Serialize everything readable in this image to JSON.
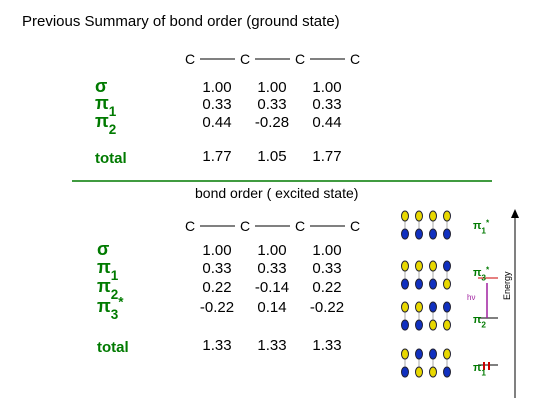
{
  "header": {
    "title": "Previous Summary of bond order (ground state)"
  },
  "ground_state": {
    "chain": [
      "C",
      "C",
      "C",
      "C"
    ],
    "rows": [
      {
        "symbol": "σ",
        "values": [
          "1.00",
          "1.00",
          "1.00"
        ]
      },
      {
        "symbol": "π",
        "sub": "1",
        "values": [
          "0.33",
          "0.33",
          "0.33"
        ]
      },
      {
        "symbol": "π",
        "sub": "2",
        "values": [
          "0.44",
          "-0.28",
          "0.44"
        ]
      },
      {
        "text": "total",
        "values": [
          "1.77",
          "1.05",
          "1.77"
        ]
      }
    ]
  },
  "excited_state": {
    "title": "bond order ( excited state)",
    "chain": [
      "C",
      "C",
      "C",
      "C"
    ],
    "rows": [
      {
        "symbol": "σ",
        "values": [
          "1.00",
          "1.00",
          "1.00"
        ]
      },
      {
        "symbol": "π",
        "sub": "1",
        "values": [
          "0.33",
          "0.33",
          "0.33"
        ]
      },
      {
        "symbol": "π",
        "sub": "2",
        "values": [
          "0.22",
          "-0.14",
          "0.22"
        ]
      },
      {
        "symbol": "π",
        "sub": "3",
        "sup": "*",
        "values": [
          "-0.22",
          "0.14",
          "-0.22"
        ]
      },
      {
        "text": "total",
        "values": [
          "1.33",
          "1.33",
          "1.33"
        ]
      }
    ]
  },
  "diagram": {
    "axis_label": "Energy",
    "transition_label": "hν",
    "levels": [
      {
        "symbol": "π",
        "sub": "1",
        "sup": "*"
      },
      {
        "symbol": "π",
        "sub": "3",
        "sup": "*"
      },
      {
        "symbol": "π",
        "sub": "2"
      },
      {
        "symbol": "π",
        "sub": "1"
      }
    ]
  }
}
